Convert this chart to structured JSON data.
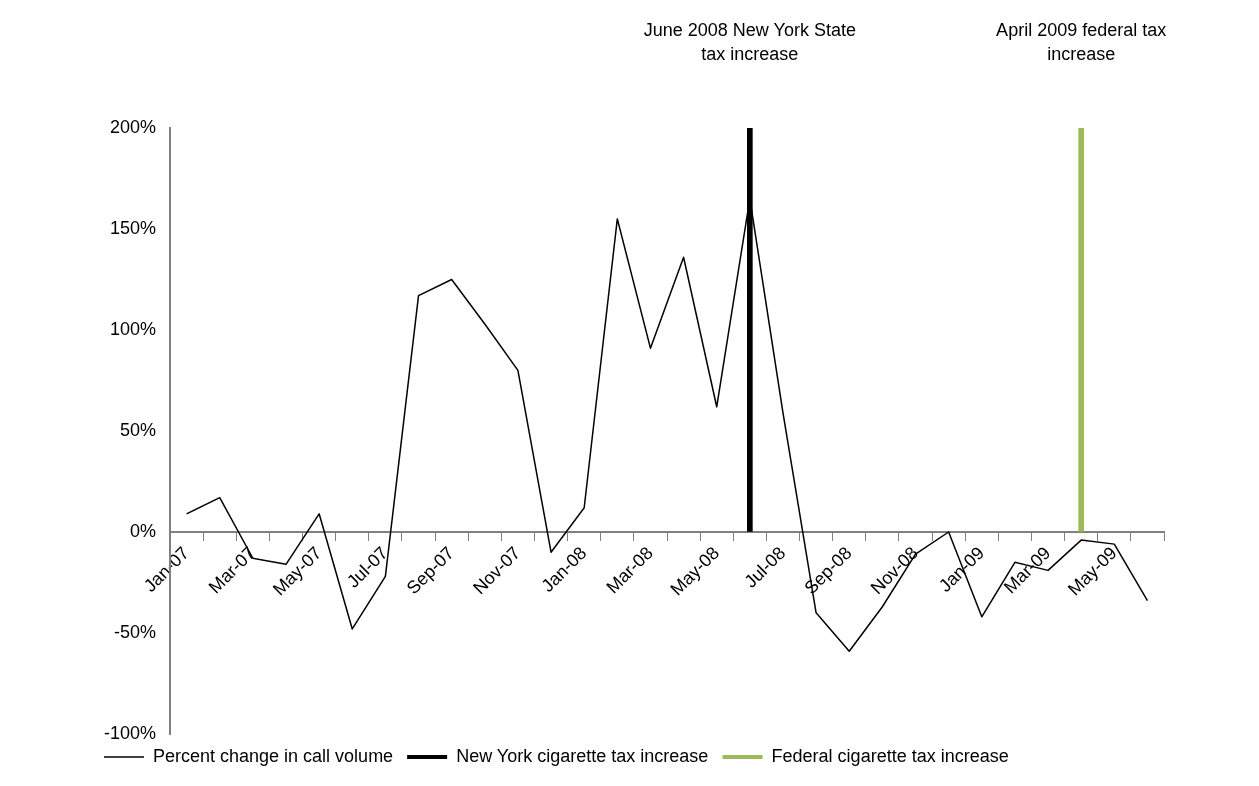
{
  "chart_data": {
    "type": "line",
    "categories": [
      "Jan-07",
      null,
      "Mar-07",
      null,
      "May-07",
      null,
      "Jul-07",
      null,
      "Sep-07",
      null,
      "Nov-07",
      null,
      "Jan-08",
      null,
      "Mar-08",
      null,
      "May-08",
      null,
      "Jul-08",
      null,
      "Sep-08",
      null,
      "Nov-08",
      null,
      "Jan-09",
      null,
      "Mar-09",
      null,
      "May-09",
      null
    ],
    "series": [
      {
        "name": "Percent change in call volume",
        "color": "#000000",
        "values": [
          9,
          17,
          -13,
          -16,
          9,
          -48,
          -22,
          117,
          125,
          103,
          80,
          -10,
          12,
          155,
          91,
          136,
          62,
          165,
          59,
          -40,
          -59,
          -37,
          -11,
          0,
          -42,
          -15,
          -19,
          -4,
          -6,
          -34
        ]
      },
      {
        "name": "New York cigarette tax increase",
        "type": "bar",
        "color": "#000000",
        "values": [
          null,
          null,
          null,
          null,
          null,
          null,
          null,
          null,
          null,
          null,
          null,
          null,
          null,
          null,
          null,
          null,
          null,
          200,
          null,
          null,
          null,
          null,
          null,
          null,
          null,
          null,
          null,
          null,
          null,
          null
        ]
      },
      {
        "name": "Federal cigarette tax increase",
        "type": "bar",
        "color": "#9bbb59",
        "values": [
          null,
          null,
          null,
          null,
          null,
          null,
          null,
          null,
          null,
          null,
          null,
          null,
          null,
          null,
          null,
          null,
          null,
          null,
          null,
          null,
          null,
          null,
          null,
          null,
          null,
          null,
          null,
          200,
          null,
          null
        ]
      }
    ],
    "ylim": [
      -100,
      200
    ],
    "yticks": [
      {
        "value": -100,
        "label": "-100%"
      },
      {
        "value": -50,
        "label": "-50%"
      },
      {
        "value": 0,
        "label": "0%"
      },
      {
        "value": 50,
        "label": "50%"
      },
      {
        "value": 100,
        "label": "100%"
      },
      {
        "value": 150,
        "label": "150%"
      },
      {
        "value": 200,
        "label": "200%"
      }
    ],
    "annotations": [
      "June 2008 New York State tax increase",
      "April 2009 federal tax increase"
    ],
    "legend": "bottom",
    "grid": false,
    "marker": "none",
    "line_style": "solid"
  }
}
